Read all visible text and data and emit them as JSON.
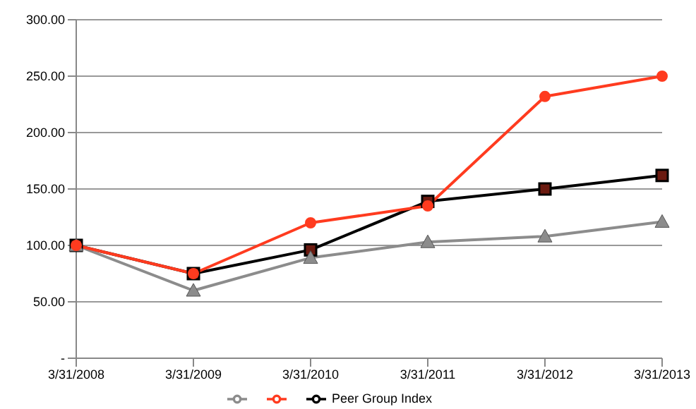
{
  "chart_data": {
    "type": "line",
    "categories": [
      "3/31/2008",
      "3/31/2009",
      "3/31/2010",
      "3/31/2011",
      "3/31/2012",
      "3/31/2013"
    ],
    "series": [
      {
        "color": "#ff3b1f",
        "marker": "circle",
        "values": [
          100,
          75,
          120,
          135,
          232,
          250
        ]
      },
      {
        "color": "#8c8c8c",
        "marker": "triangle",
        "values": [
          100,
          60,
          89,
          103,
          108,
          121
        ]
      },
      {
        "name": "Peer Group Index",
        "color": "#000000",
        "marker": "square",
        "values": [
          100,
          75,
          96,
          139,
          150,
          162
        ]
      }
    ],
    "ylim": [
      0,
      300
    ],
    "yticks": [
      {
        "value": 0,
        "label": "-"
      },
      {
        "value": 50,
        "label": "50.00"
      },
      {
        "value": 100,
        "label": "100.00"
      },
      {
        "value": 150,
        "label": "150.00"
      },
      {
        "value": 200,
        "label": "200.00"
      },
      {
        "value": 250,
        "label": "250.00"
      },
      {
        "value": 300,
        "label": "300.00"
      }
    ],
    "grid": "y",
    "legend": "bottom"
  }
}
